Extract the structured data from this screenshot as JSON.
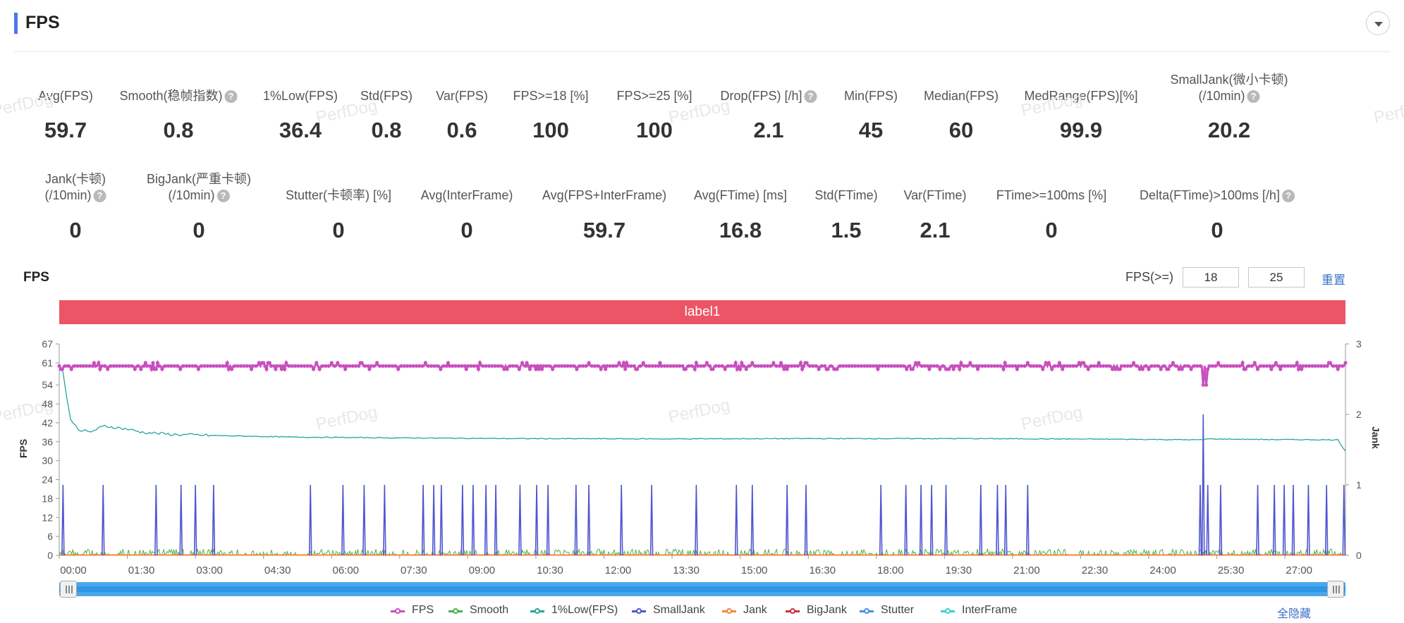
{
  "header": {
    "title": "FPS"
  },
  "metrics_row1": [
    {
      "label": "Avg(FPS)",
      "value": "59.7",
      "help": false
    },
    {
      "label": "Smooth(稳帧指数)",
      "value": "0.8",
      "help": true
    },
    {
      "label": "1%Low(FPS)",
      "value": "36.4",
      "help": false
    },
    {
      "label": "Std(FPS)",
      "value": "0.8",
      "help": false
    },
    {
      "label": "Var(FPS)",
      "value": "0.6",
      "help": false
    },
    {
      "label": "FPS>=18 [%]",
      "value": "100",
      "help": false
    },
    {
      "label": "FPS>=25 [%]",
      "value": "100",
      "help": false
    },
    {
      "label": "Drop(FPS) [/h]",
      "value": "2.1",
      "help": true
    },
    {
      "label": "Min(FPS)",
      "value": "45",
      "help": false
    },
    {
      "label": "Median(FPS)",
      "value": "60",
      "help": false
    },
    {
      "label": "MedRange(FPS)[%]",
      "value": "99.9",
      "help": false
    },
    {
      "label": "SmallJank(微小卡顿)",
      "label2": "(/10min)",
      "value": "20.2",
      "help": true
    }
  ],
  "metrics_row2": [
    {
      "label": "Jank(卡顿)",
      "label2": "(/10min)",
      "value": "0",
      "help": true
    },
    {
      "label": "BigJank(严重卡顿)",
      "label2": "(/10min)",
      "value": "0",
      "help": true
    },
    {
      "label": "Stutter(卡顿率) [%]",
      "value": "0",
      "help": false
    },
    {
      "label": "Avg(InterFrame)",
      "value": "0",
      "help": false
    },
    {
      "label": "Avg(FPS+InterFrame)",
      "value": "59.7",
      "help": false
    },
    {
      "label": "Avg(FTime) [ms]",
      "value": "16.8",
      "help": false
    },
    {
      "label": "Std(FTime)",
      "value": "1.5",
      "help": false
    },
    {
      "label": "Var(FTime)",
      "value": "2.1",
      "help": false
    },
    {
      "label": "FTime>=100ms [%]",
      "value": "0",
      "help": false
    },
    {
      "label": "Delta(FTime)>100ms [/h]",
      "value": "0",
      "help": true
    }
  ],
  "chart_section": {
    "title": "FPS",
    "threshold_label": "FPS(>=)",
    "threshold_1": "18",
    "threshold_2": "25",
    "reset_label": "重置",
    "band_label": "label1",
    "hide_all_label": "全隐藏"
  },
  "chart_data": {
    "type": "line",
    "ylabel": "FPS",
    "y2label": "Jank",
    "ylim": [
      0,
      67
    ],
    "y2lim": [
      0,
      3
    ],
    "yticks": [
      0,
      6,
      12,
      18,
      24,
      30,
      36,
      42,
      48,
      54,
      61,
      67
    ],
    "y2ticks": [
      0,
      1,
      2,
      3
    ],
    "x_range_seconds": [
      0,
      1700
    ],
    "xticks": [
      "00:00",
      "01:30",
      "03:00",
      "04:30",
      "06:00",
      "07:30",
      "09:00",
      "10:30",
      "12:00",
      "13:30",
      "15:00",
      "16:30",
      "18:00",
      "19:30",
      "21:00",
      "22:30",
      "24:00",
      "25:30",
      "27:00"
    ],
    "series": [
      {
        "name": "FPS",
        "color": "#c94fbf",
        "axis": "left",
        "baseline": 60,
        "approx_range": [
          59,
          61
        ],
        "dips": [
          {
            "t": 1512,
            "value": 54
          },
          {
            "t": 1516,
            "value": 54
          },
          {
            "t": 1697,
            "value": 53
          }
        ]
      },
      {
        "name": "Smooth",
        "color": "#4caf50",
        "axis": "left",
        "approx_range": [
          0,
          2
        ]
      },
      {
        "name": "1%Low(FPS)",
        "color": "#26a69a",
        "axis": "left",
        "points": [
          [
            0,
            60
          ],
          [
            5,
            58
          ],
          [
            10,
            50
          ],
          [
            15,
            43
          ],
          [
            25,
            40
          ],
          [
            40,
            39
          ],
          [
            60,
            41
          ],
          [
            75,
            40.5
          ],
          [
            90,
            40
          ],
          [
            110,
            39
          ],
          [
            150,
            38.3
          ],
          [
            200,
            38
          ],
          [
            300,
            37.5
          ],
          [
            400,
            37.3
          ],
          [
            600,
            37
          ],
          [
            800,
            36.9
          ],
          [
            1000,
            37
          ],
          [
            1200,
            37
          ],
          [
            1400,
            36.8
          ],
          [
            1512,
            36.6
          ],
          [
            1516,
            36.9
          ],
          [
            1600,
            36.7
          ],
          [
            1690,
            36.6
          ],
          [
            1700,
            33
          ]
        ]
      },
      {
        "name": "SmallJank",
        "color": "#4f56d0",
        "axis": "right",
        "spikes": [
          {
            "t": 5,
            "value": 1
          },
          {
            "t": 58,
            "value": 1
          },
          {
            "t": 128,
            "value": 1
          },
          {
            "t": 161,
            "value": 1
          },
          {
            "t": 180,
            "value": 1
          },
          {
            "t": 204,
            "value": 1
          },
          {
            "t": 332,
            "value": 1
          },
          {
            "t": 375,
            "value": 1
          },
          {
            "t": 403,
            "value": 1
          },
          {
            "t": 430,
            "value": 1
          },
          {
            "t": 481,
            "value": 1
          },
          {
            "t": 495,
            "value": 1
          },
          {
            "t": 505,
            "value": 1
          },
          {
            "t": 533,
            "value": 1
          },
          {
            "t": 547,
            "value": 1
          },
          {
            "t": 564,
            "value": 1
          },
          {
            "t": 577,
            "value": 1
          },
          {
            "t": 609,
            "value": 1
          },
          {
            "t": 631,
            "value": 1
          },
          {
            "t": 646,
            "value": 1
          },
          {
            "t": 683,
            "value": 1
          },
          {
            "t": 700,
            "value": 1
          },
          {
            "t": 743,
            "value": 1
          },
          {
            "t": 783,
            "value": 1
          },
          {
            "t": 842,
            "value": 1
          },
          {
            "t": 895,
            "value": 1
          },
          {
            "t": 916,
            "value": 1
          },
          {
            "t": 962,
            "value": 1
          },
          {
            "t": 987,
            "value": 1
          },
          {
            "t": 1086,
            "value": 1
          },
          {
            "t": 1119,
            "value": 1
          },
          {
            "t": 1139,
            "value": 1
          },
          {
            "t": 1153,
            "value": 1
          },
          {
            "t": 1172,
            "value": 1
          },
          {
            "t": 1218,
            "value": 1
          },
          {
            "t": 1240,
            "value": 1
          },
          {
            "t": 1251,
            "value": 1
          },
          {
            "t": 1280,
            "value": 1
          },
          {
            "t": 1508,
            "value": 1
          },
          {
            "t": 1512,
            "value": 2
          },
          {
            "t": 1518,
            "value": 1
          },
          {
            "t": 1535,
            "value": 1
          },
          {
            "t": 1584,
            "value": 1
          },
          {
            "t": 1606,
            "value": 1
          },
          {
            "t": 1619,
            "value": 1
          },
          {
            "t": 1631,
            "value": 1
          },
          {
            "t": 1651,
            "value": 1
          },
          {
            "t": 1675,
            "value": 1
          },
          {
            "t": 1698,
            "value": 1
          }
        ]
      },
      {
        "name": "Jank",
        "color": "#f5863a",
        "axis": "right",
        "values": 0
      },
      {
        "name": "BigJank",
        "color": "#c7333c",
        "axis": "right",
        "values": 0
      },
      {
        "name": "Stutter",
        "color": "#4c8ee6",
        "axis": "right",
        "values": 0
      },
      {
        "name": "InterFrame",
        "color": "#3fcfcf",
        "axis": "left",
        "values": 0
      }
    ]
  }
}
